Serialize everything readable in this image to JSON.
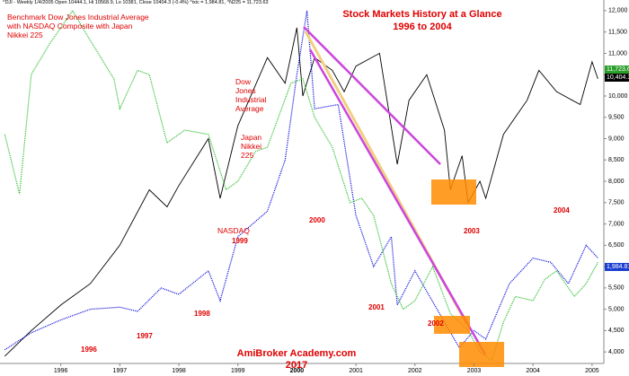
{
  "chart_data": {
    "type": "line",
    "header": "^DJI - Weekly 1/4/2005 Open 10444.1, Hi 10568.9, Lo 10381, Close 10404.3 (-0.4%) ^ixic = 1,984.81, ^N225 = 11,723.63",
    "title": "Stock Markets History at a Glance",
    "subtitle": "1996 to 2004",
    "description": "Benchmark Dow Jones Industrial Average with NASDAQ Composite with Japan Nikkei 225",
    "watermark": "AmiBroker Academy.com  2017",
    "period_labels": [
      "1996",
      "1997",
      "1998",
      "1999",
      "2000",
      "2001",
      "2002",
      "2003",
      "2004"
    ],
    "price_tags": [
      "11,723.63",
      "10,404.3",
      "1,984.81"
    ],
    "xlim": [
      1994.97,
      2005.2
    ],
    "xticks": [
      1996,
      1997,
      1998,
      1999,
      2000,
      2001,
      2002,
      2003,
      2004,
      2005
    ],
    "ylim": [
      3730,
      12250
    ],
    "yticks": [
      {
        "value": 4000,
        "label": "4,000"
      },
      {
        "value": 4500,
        "label": "4,500"
      },
      {
        "value": 5000,
        "label": "5,000"
      },
      {
        "value": 5500,
        "label": "5,500"
      },
      {
        "value": 6000,
        "label": "6,000"
      },
      {
        "value": 6500,
        "label": "6,500"
      },
      {
        "value": 7000,
        "label": "7,000"
      },
      {
        "value": 7500,
        "label": "7,500"
      },
      {
        "value": 8000,
        "label": "8,000"
      },
      {
        "value": 8500,
        "label": "8,500"
      },
      {
        "value": 9000,
        "label": "9,000"
      },
      {
        "value": 9500,
        "label": "9,500"
      },
      {
        "value": 10000,
        "label": "10,000"
      },
      {
        "value": 10500,
        "label": "10,500"
      },
      {
        "value": 11000,
        "label": "11,000"
      },
      {
        "value": 11500,
        "label": "11,500"
      },
      {
        "value": 12000,
        "label": "12,000"
      }
    ],
    "series": [
      {
        "name": "Dow Jones Industrial Average",
        "color": "#000000",
        "dotted": false,
        "x": [
          1995.05,
          1995.5,
          1996.0,
          1996.5,
          1997.0,
          1997.5,
          1997.8,
          1998.0,
          1998.5,
          1998.7,
          1999.0,
          1999.5,
          1999.8,
          2000.0,
          2000.1,
          2000.3,
          2000.6,
          2000.8,
          2001.0,
          2001.4,
          2001.7,
          2001.9,
          2002.2,
          2002.5,
          2002.6,
          2002.8,
          2002.9,
          2003.1,
          2003.2,
          2003.5,
          2003.9,
          2004.1,
          2004.4,
          2004.8,
          2005.0,
          2005.1
        ],
        "values": [
          3900,
          4500,
          5100,
          5600,
          6500,
          7800,
          7400,
          7900,
          9000,
          7600,
          9300,
          10900,
          10300,
          11600,
          10000,
          10900,
          10600,
          10100,
          10700,
          11000,
          8400,
          9900,
          10500,
          9200,
          7800,
          8600,
          7500,
          8000,
          7600,
          9100,
          9900,
          10600,
          10100,
          9800,
          10800,
          10400
        ]
      },
      {
        "name": "NASDAQ",
        "color": "#0000dd",
        "dotted": true,
        "x": [
          1995.05,
          1995.5,
          1996.0,
          1996.5,
          1997.0,
          1997.3,
          1997.7,
          1998.0,
          1998.5,
          1998.7,
          1999.0,
          1999.5,
          1999.8,
          2000.0,
          2000.17,
          2000.3,
          2000.7,
          2001.0,
          2001.3,
          2001.6,
          2001.7,
          2002.0,
          2002.5,
          2002.75,
          2003.0,
          2003.2,
          2003.6,
          2004.0,
          2004.3,
          2004.6,
          2004.9,
          2005.1
        ],
        "values": [
          4050,
          4450,
          4750,
          5000,
          5050,
          4950,
          5500,
          5350,
          5900,
          5200,
          6700,
          7300,
          8500,
          10500,
          12000,
          9700,
          9800,
          7200,
          6000,
          6700,
          5100,
          5900,
          4700,
          4100,
          4500,
          4300,
          5600,
          6200,
          6100,
          5600,
          6500,
          6200
        ]
      },
      {
        "name": "Japan Nikkei 225",
        "color": "#22bb22",
        "dotted": true,
        "x": [
          1995.05,
          1995.3,
          1995.5,
          1995.8,
          1996.2,
          1996.5,
          1996.9,
          1997.0,
          1997.3,
          1997.5,
          1997.8,
          1998.1,
          1998.5,
          1998.8,
          1999.0,
          1999.3,
          1999.5,
          1999.9,
          2000.1,
          2000.3,
          2000.6,
          2000.9,
          2001.1,
          2001.3,
          2001.6,
          2001.8,
          2002.0,
          2002.3,
          2002.6,
          2002.9,
          2003.1,
          2003.3,
          2003.5,
          2003.7,
          2004.0,
          2004.2,
          2004.4,
          2004.7,
          2004.9,
          2005.1
        ],
        "values": [
          9100,
          7700,
          10500,
          11200,
          12000,
          11300,
          10400,
          9700,
          10600,
          10500,
          8900,
          9200,
          9100,
          7800,
          8000,
          8700,
          8800,
          10300,
          10400,
          9500,
          8800,
          7500,
          7600,
          7200,
          5600,
          5000,
          5200,
          6000,
          4900,
          4500,
          4000,
          3800,
          4700,
          5300,
          5200,
          5700,
          5900,
          5300,
          5600,
          6100
        ]
      }
    ]
  }
}
